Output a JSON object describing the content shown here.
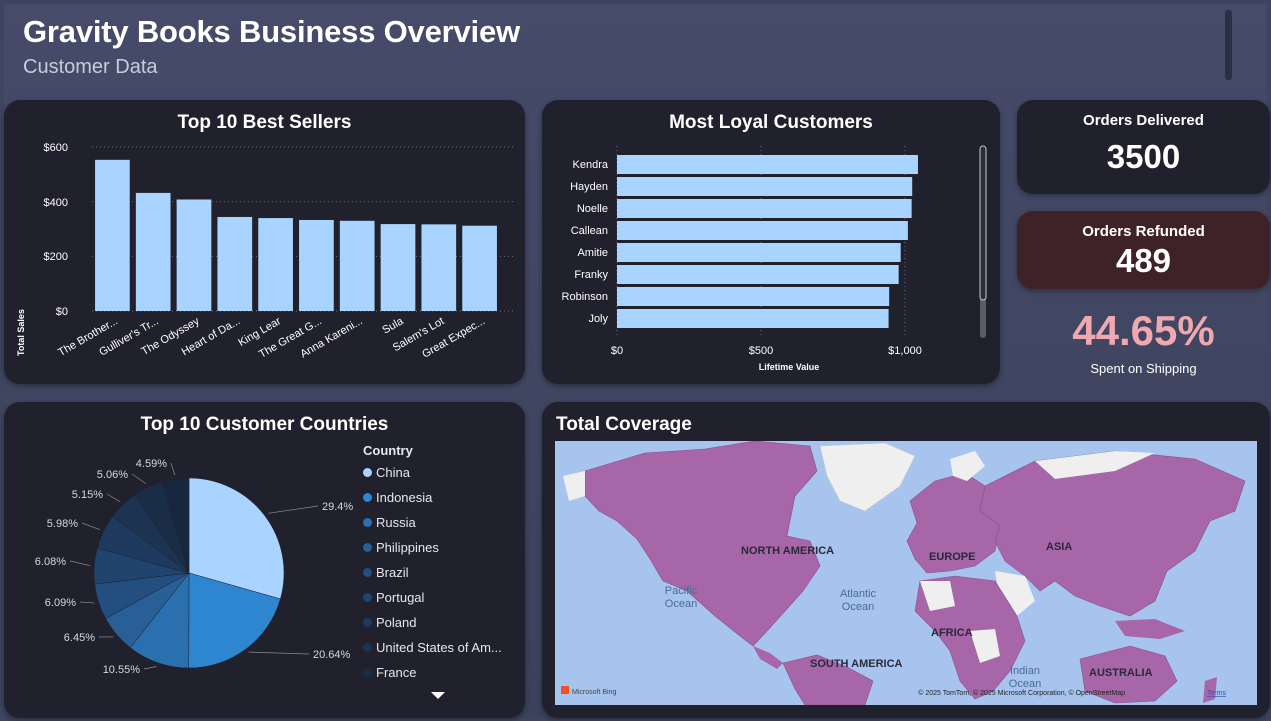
{
  "header": {
    "title": "Gravity Books Business Overview",
    "subtitle": "Customer Data"
  },
  "best_sellers": {
    "title": "Top 10 Best Sellers",
    "bar_color": "#a8d4ff",
    "ylabel": "Total Sales",
    "y_ticks": [
      "$600",
      "$400",
      "$200",
      "$0"
    ],
    "chart_data": {
      "type": "bar",
      "title": "Top 10 Best Sellers",
      "ylabel": "Total Sales",
      "xlabel": "",
      "ylim": [
        0,
        600
      ],
      "categories": [
        "The Brother...",
        "Gulliver's Tr...",
        "The Odyssey",
        "Heart of Da...",
        "King Lear",
        "The Great G...",
        "Anna Kareni...",
        "Sula",
        "Salem's Lot",
        "Great Expec..."
      ],
      "values": [
        553,
        432,
        408,
        344,
        340,
        333,
        330,
        318,
        317,
        312
      ]
    }
  },
  "loyal_customers": {
    "title": "Most Loyal Customers",
    "bar_color": "#a8d4ff",
    "x_ticks": [
      "$0",
      "$500",
      "$1,000"
    ],
    "chart_data": {
      "type": "bar",
      "orientation": "horizontal",
      "title": "Most Loyal Customers",
      "xlabel": "Lifetime Value",
      "ylabel": "",
      "xlim": [
        0,
        1000
      ],
      "categories": [
        "Kendra",
        "Hayden",
        "Noelle",
        "Callean",
        "Amitie",
        "Franky",
        "Robinson",
        "Joly"
      ],
      "values": [
        1045,
        1025,
        1023,
        1010,
        985,
        978,
        945,
        943
      ]
    }
  },
  "kpis": {
    "delivered_label": "Orders Delivered",
    "delivered_value": "3500",
    "refunded_label": "Orders Refunded",
    "refunded_value": "489",
    "shipping_value": "44.65%",
    "shipping_label": "Spent on Shipping",
    "refunded_bg": "#3e2228",
    "shipping_color": "#f0a8b0"
  },
  "countries": {
    "title": "Top 10 Customer Countries",
    "legend_title": "Country",
    "legend": [
      {
        "name": "China",
        "color": "#a8d4ff"
      },
      {
        "name": "Indonesia",
        "color": "#2f86d0"
      },
      {
        "name": "Russia",
        "color": "#2a6fae"
      },
      {
        "name": "Philippines",
        "color": "#275f96"
      },
      {
        "name": "Brazil",
        "color": "#234f80"
      },
      {
        "name": "Portugal",
        "color": "#20446e"
      },
      {
        "name": "Poland",
        "color": "#1e3b5f"
      },
      {
        "name": "United States of Am...",
        "color": "#1c3352"
      },
      {
        "name": "France",
        "color": "#1a2d47"
      }
    ],
    "chart_data": {
      "type": "pie",
      "title": "Top 10 Customer Countries",
      "categories": [
        "China",
        "Indonesia",
        "Russia",
        "Philippines",
        "Brazil",
        "Portugal",
        "Poland",
        "United States of Am...",
        "France",
        ""
      ],
      "values": [
        29.4,
        20.64,
        10.55,
        6.45,
        6.09,
        6.08,
        5.98,
        5.15,
        5.06,
        4.59
      ],
      "labels": [
        "29.4%",
        "20.64%",
        "10.55%",
        "6.45%",
        "6.09%",
        "6.08%",
        "5.98%",
        "5.15%",
        "5.06%",
        "4.59%"
      ],
      "colors": [
        "#a8d4ff",
        "#2f86d0",
        "#2a6fae",
        "#275f96",
        "#234f80",
        "#20446e",
        "#1e3b5f",
        "#1c3352",
        "#1a2d47",
        "#182740"
      ]
    }
  },
  "coverage": {
    "title": "Total Coverage",
    "labels": {
      "north_america": "NORTH AMERICA",
      "europe": "EUROPE",
      "asia": "ASIA",
      "africa": "AFRICA",
      "south_america": "SOUTH AMERICA",
      "australia": "AUSTRALIA",
      "pacific": "Pacific",
      "pacific2": "Ocean",
      "atlantic": "Atlantic",
      "atlantic2": "Ocean",
      "indian": "Indian",
      "indian2": "Ocean"
    },
    "attribution": "© 2025 TomTom, © 2025 Microsoft Corporation, © OpenStreetMap",
    "terms": "Terms",
    "bing": "Microsoft Bing",
    "ocean_color": "#a7c4ef",
    "land_color": "#a666a8",
    "neutral_land": "#efefef"
  }
}
